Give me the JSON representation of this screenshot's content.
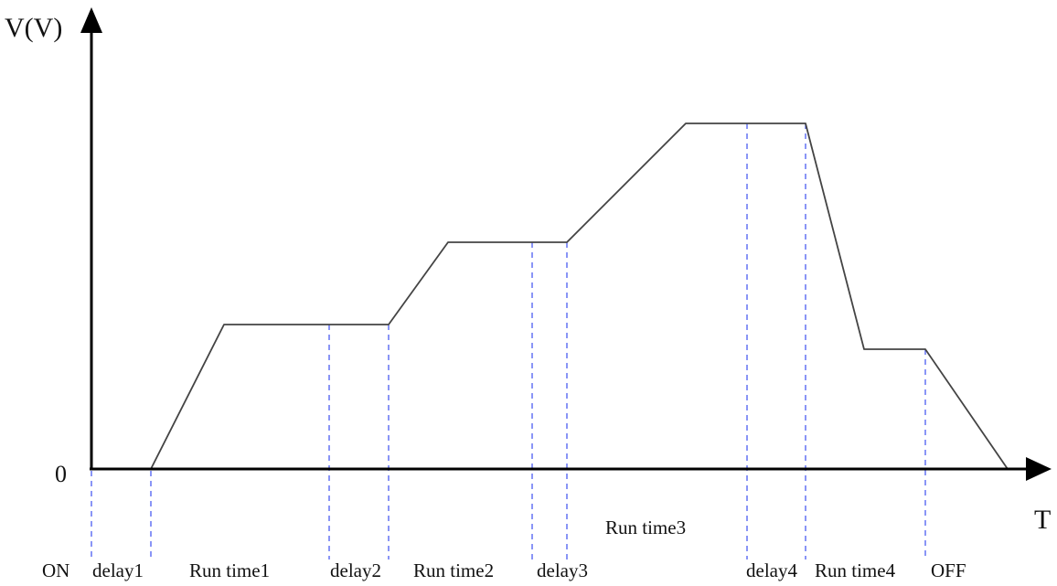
{
  "diagram": {
    "y_axis_label": "V(V)",
    "x_axis_label": "T",
    "origin_label": "0",
    "phase_labels": {
      "on": "ON",
      "delay1": "delay1",
      "run_time1": "Run time1",
      "delay2": "delay2",
      "run_time2": "Run time2",
      "delay3": "delay3",
      "run_time3": "Run time3",
      "delay4": "delay4",
      "run_time4": "Run time4",
      "off": "OFF"
    },
    "colors": {
      "axis": "#000000",
      "waveform": "#444444",
      "marker_lines": "#4a5cf0",
      "text": "#111111"
    }
  }
}
